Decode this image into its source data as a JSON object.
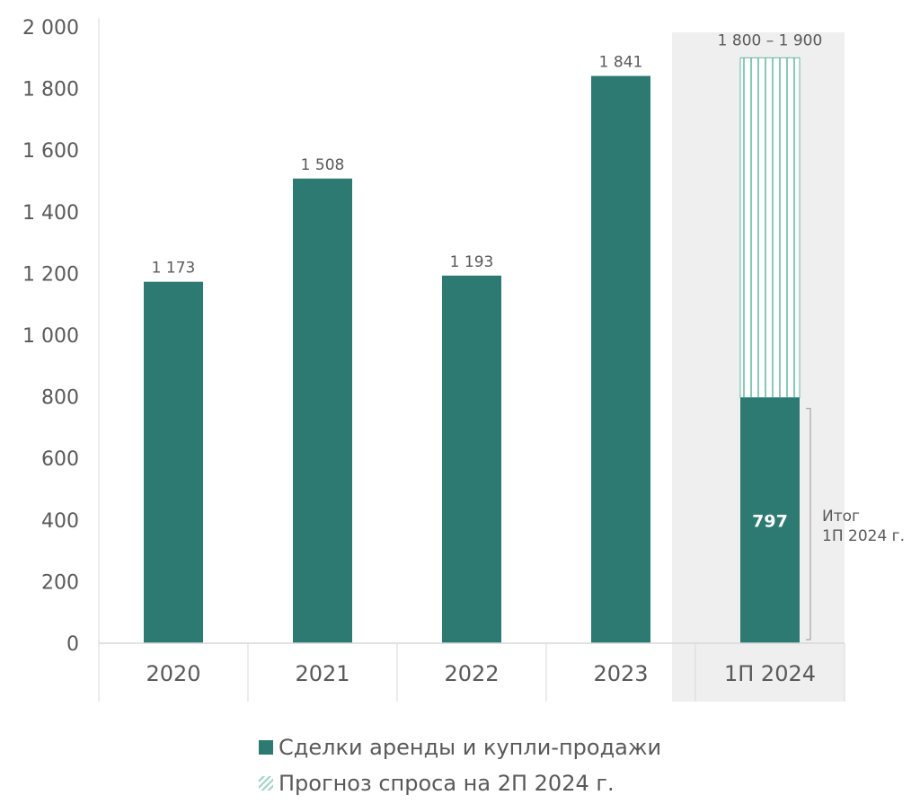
{
  "colors": {
    "bar": "#2c7a72",
    "forecast_stroke": "#5fb89f",
    "highlight_bg": "#efefef",
    "axis": "#d9d9d9",
    "text": "#595959"
  },
  "chart_data": {
    "type": "bar",
    "categories": [
      "2020",
      "2021",
      "2022",
      "2023",
      "1П 2024"
    ],
    "series": [
      {
        "name": "Сделки аренды и купли-продажи",
        "values": [
          1173,
          1508,
          1193,
          1841,
          797
        ]
      },
      {
        "name": "Прогноз спроса на 2П 2024 г.",
        "values": [
          0,
          0,
          0,
          0,
          1103
        ],
        "stacked_on": 0,
        "pattern": "vertical-hatch"
      }
    ],
    "data_labels": [
      "1 173",
      "1 508",
      "1 193",
      "1 841",
      "797"
    ],
    "forecast_label": "1 800 – 1 900",
    "annotation": [
      "Итог",
      "1П 2024 г."
    ],
    "highlight_category": "1П 2024",
    "ylim": [
      0,
      2000
    ],
    "yticks": [
      0,
      200,
      400,
      600,
      800,
      1000,
      1200,
      1400,
      1600,
      1800,
      2000
    ],
    "ytick_labels": [
      "0",
      "200",
      "400",
      "600",
      "800",
      "1 000",
      "1 200",
      "1 400",
      "1 600",
      "1 800",
      "2 000"
    ],
    "grid": false,
    "legend_position": "bottom"
  },
  "legend": [
    {
      "label": "Сделки аренды и купли-продажи"
    },
    {
      "label": "Прогноз спроса на 2П 2024 г."
    }
  ]
}
